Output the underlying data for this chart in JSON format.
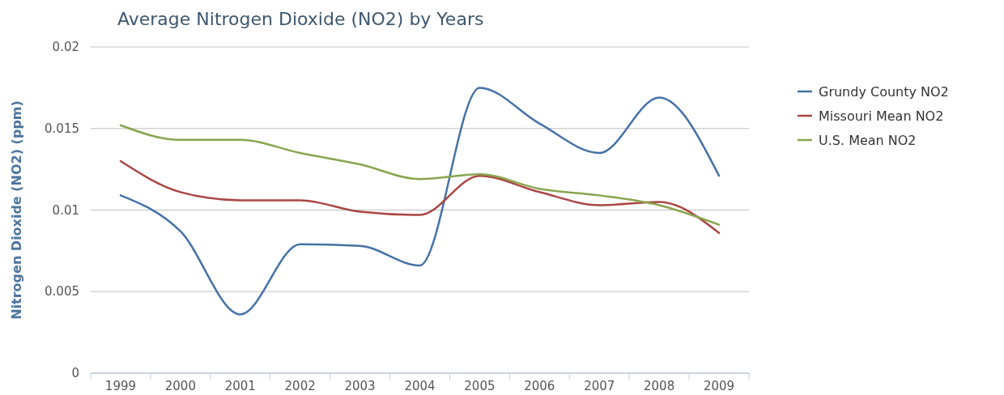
{
  "chart_data": {
    "type": "line",
    "title": "Average Nitrogen Dioxide (NO2) by Years",
    "ylabel": "Nitrogen Dioxide (NO2) (ppm)",
    "categories": [
      "1999",
      "2000",
      "2001",
      "2002",
      "2003",
      "2004",
      "2005",
      "2006",
      "2007",
      "2008",
      "2009"
    ],
    "series": [
      {
        "name": "Grundy County NO2",
        "color": "#4572a7",
        "values": [
          0.0109,
          0.0087,
          0.0036,
          0.0079,
          0.0078,
          0.0066,
          0.0175,
          0.0153,
          0.0135,
          0.0169,
          0.0121
        ]
      },
      {
        "name": "Missouri Mean NO2",
        "color": "#aa4643",
        "values": [
          0.013,
          0.0111,
          0.0106,
          0.0106,
          0.0099,
          0.0097,
          0.0121,
          0.0111,
          0.0103,
          0.0105,
          0.0086
        ]
      },
      {
        "name": "U.S. Mean NO2",
        "color": "#89a54e",
        "values": [
          0.0152,
          0.0143,
          0.0143,
          0.0135,
          0.0128,
          0.0119,
          0.0122,
          0.0113,
          0.0109,
          0.0103,
          0.0091
        ]
      }
    ],
    "ylim": [
      0,
      0.02
    ],
    "yticks": [
      0,
      0.005,
      0.01,
      0.015,
      0.02
    ],
    "grid": "y",
    "legend": "right"
  }
}
